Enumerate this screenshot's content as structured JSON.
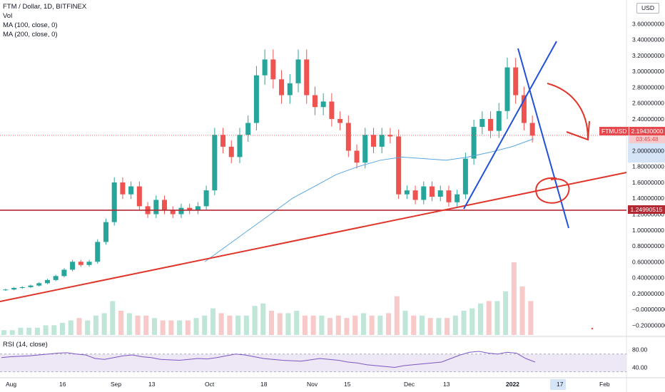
{
  "legend": {
    "symbol": "FTM / Dollar, 1D, BITFINEX",
    "vol": "Vol",
    "ma100": "MA (100, close, 0)",
    "ma200": "MA (200, close, 0)",
    "rsi": "RSI (14, close)"
  },
  "currency_box": "USD",
  "price_tag": {
    "symbol": "FTMUSD",
    "value": "2.19430000",
    "countdown": "03:45:48"
  },
  "level_tag": {
    "value": "1.24990515"
  },
  "colors": {
    "up": "#26a69a",
    "down": "#ef5350",
    "ma": "#5aa7e0",
    "trend_red": "#e0352b",
    "trend_blue": "#2151d8",
    "level": "#b22833",
    "rsi": "#7e57c2"
  },
  "chart_data": [
    {
      "type": "candlestick",
      "title": "FTM / Dollar, 1D, BITFINEX",
      "xlabel": "",
      "ylabel": "",
      "x_ticks": [
        "Aug",
        "16",
        "Sep",
        "13",
        "Oct",
        "18",
        "Nov",
        "15",
        "Dec",
        "13",
        "2022",
        "17",
        "Feb"
      ],
      "y_ticks": [
        "3.60000000",
        "3.40000000",
        "3.20000000",
        "3.00000000",
        "2.80000000",
        "2.60000000",
        "2.40000000",
        "2.20000000",
        "2.00000000",
        "1.80000000",
        "1.60000000",
        "1.40000000",
        "1.20000000",
        "1.00000000",
        "0.80000000",
        "0.60000000",
        "0.40000000",
        "0.20000000",
        "−0.00000000",
        "−0.20000000"
      ],
      "ylim": [
        -0.26,
        3.72
      ],
      "close_series": [
        0.25,
        0.27,
        0.28,
        0.3,
        0.33,
        0.37,
        0.42,
        0.5,
        0.6,
        0.56,
        0.6,
        0.85,
        1.1,
        1.6,
        1.45,
        1.55,
        1.3,
        1.2,
        1.38,
        1.25,
        1.2,
        1.28,
        1.25,
        1.3,
        1.5,
        2.2,
        2.05,
        1.92,
        2.2,
        2.35,
        2.95,
        3.15,
        2.9,
        2.7,
        2.85,
        3.15,
        2.7,
        2.55,
        2.62,
        2.4,
        2.35,
        2.0,
        1.85,
        2.2,
        2.05,
        2.2,
        2.18,
        1.45,
        1.5,
        1.38,
        1.55,
        1.42,
        1.5,
        1.35,
        1.45,
        1.9,
        2.3,
        2.4,
        2.25,
        2.5,
        3.05,
        2.7,
        2.35,
        2.19
      ],
      "current_price": 2.1943,
      "horizontal_level": 1.24990515,
      "ma_series": [
        0.6,
        0.8,
        1.0,
        1.2,
        1.4,
        1.55,
        1.7,
        1.8,
        1.88,
        1.92,
        1.9,
        1.88,
        1.92,
        1.98,
        2.05,
        2.15
      ],
      "volume_series": [
        2,
        2,
        3,
        3,
        3,
        4,
        4,
        5,
        6,
        7,
        6,
        8,
        9,
        14,
        10,
        9,
        8,
        8,
        7,
        6,
        6,
        6,
        6,
        7,
        8,
        11,
        9,
        8,
        8,
        8,
        12,
        13,
        10,
        9,
        9,
        10,
        8,
        8,
        8,
        7,
        8,
        7,
        8,
        9,
        8,
        8,
        9,
        16,
        10,
        8,
        8,
        7,
        7,
        7,
        8,
        10,
        11,
        13,
        14,
        14,
        18,
        30,
        20,
        14
      ]
    },
    {
      "type": "line",
      "title": "RSI (14, close)",
      "y_ticks": [
        "80.00",
        "40.00"
      ],
      "ylim": [
        20,
        100
      ],
      "bands": [
        70,
        30
      ],
      "values": [
        62,
        64,
        65,
        66,
        68,
        70,
        72,
        73,
        70,
        68,
        60,
        58,
        62,
        66,
        68,
        64,
        62,
        58,
        57,
        56,
        58,
        60,
        59,
        62,
        66,
        70,
        68,
        64,
        60,
        58,
        56,
        55,
        54,
        57,
        60,
        58,
        56,
        52,
        50,
        46,
        44,
        42,
        40,
        44,
        46,
        48,
        50,
        52,
        60,
        68,
        74,
        76,
        72,
        70,
        74,
        72,
        60,
        52
      ]
    }
  ]
}
